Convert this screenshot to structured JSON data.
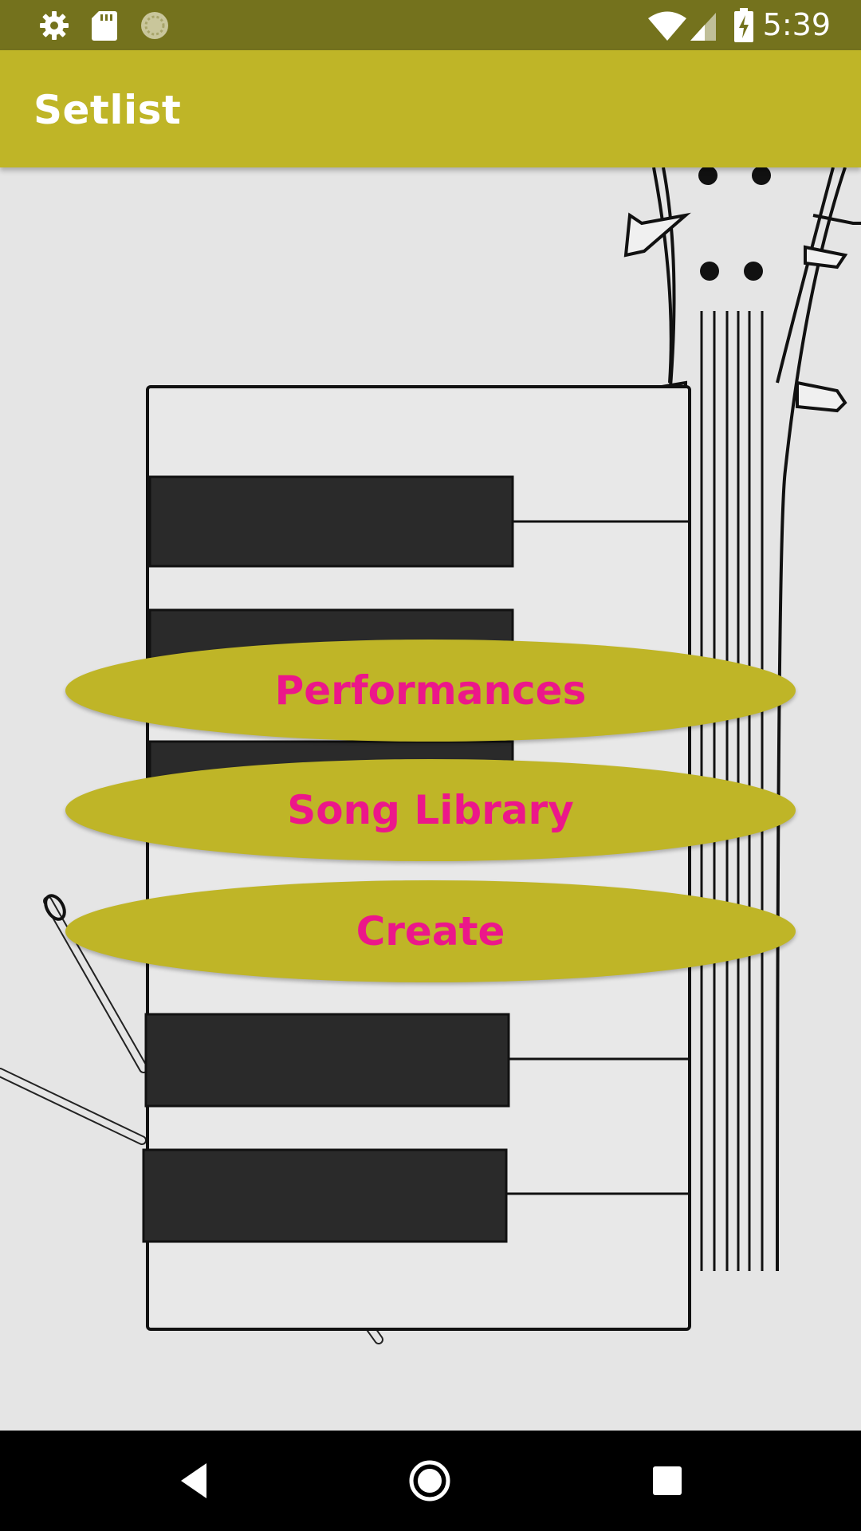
{
  "status_bar": {
    "time": "5:39",
    "icons": [
      "gear-icon",
      "sd-card-icon",
      "sync-icon",
      "wifi-icon",
      "signal-icon",
      "battery-charging-icon"
    ]
  },
  "app_bar": {
    "title": "Setlist"
  },
  "menu": {
    "performances_label": "Performances",
    "song_library_label": "Song Library",
    "create_label": "Create"
  },
  "colors": {
    "status_bar": "#74721d",
    "app_bar": "#bfb527",
    "button_fill": "#bfb527",
    "button_text": "#ec178a",
    "nav_bar": "#000000"
  },
  "nav_bar": {
    "buttons": [
      "back-icon",
      "home-icon",
      "recents-icon"
    ]
  }
}
